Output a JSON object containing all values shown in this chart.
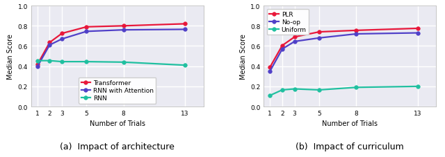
{
  "x": [
    1,
    2,
    3,
    5,
    8,
    13
  ],
  "plot_a": {
    "caption": "(a)  Impact of architecture",
    "ylabel": "Median Score",
    "xlabel": "Number of Trials",
    "legend_loc": "lower center",
    "series": [
      {
        "label": "Transformer",
        "color": "#e8173a",
        "values": [
          0.415,
          0.635,
          0.725,
          0.79,
          0.8,
          0.82
        ]
      },
      {
        "label": "RNN with Attention",
        "color": "#5040c8",
        "values": [
          0.395,
          0.61,
          0.67,
          0.745,
          0.76,
          0.765
        ]
      },
      {
        "label": "RNN",
        "color": "#20c0a0",
        "values": [
          0.455,
          0.455,
          0.445,
          0.445,
          0.44,
          0.41
        ]
      }
    ]
  },
  "plot_b": {
    "caption": "(b)  Impact of curriculum",
    "ylabel": "Median Score",
    "xlabel": "Number of Trials",
    "legend_loc": "upper left",
    "series": [
      {
        "label": "PLR",
        "color": "#e8173a",
        "values": [
          0.39,
          0.605,
          0.69,
          0.74,
          0.755,
          0.775
        ]
      },
      {
        "label": "No-op",
        "color": "#5040c8",
        "values": [
          0.35,
          0.57,
          0.645,
          0.68,
          0.72,
          0.73
        ]
      },
      {
        "label": "Uniform",
        "color": "#20c0a0",
        "values": [
          0.11,
          0.165,
          0.175,
          0.165,
          0.19,
          0.2
        ]
      }
    ]
  },
  "ylim": [
    0.0,
    1.0
  ],
  "yticks": [
    0.0,
    0.2,
    0.4,
    0.6,
    0.8,
    1.0
  ],
  "background_color": "#eaeaf2",
  "grid_color": "#ffffff",
  "marker": "o",
  "markersize": 4,
  "linewidth": 1.6,
  "legend_fontsize": 6.5,
  "axis_fontsize": 7,
  "tick_fontsize": 6.5,
  "caption_fontsize": 9
}
